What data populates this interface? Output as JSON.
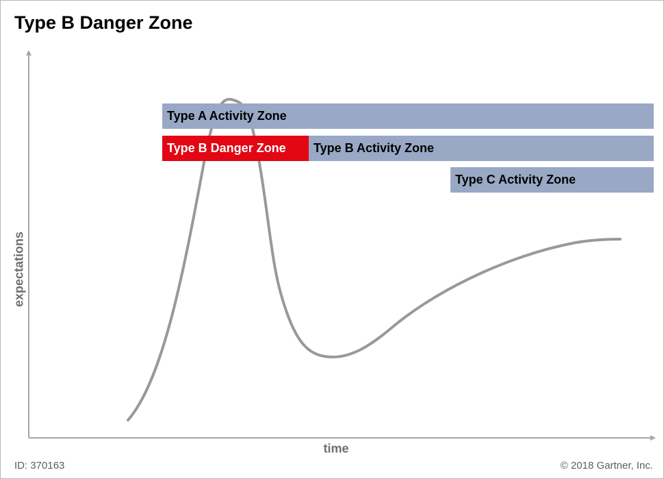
{
  "title": "Type B Danger Zone",
  "axes": {
    "y_label": "expectations",
    "x_label": "time"
  },
  "zones": {
    "type_a_activity": "Type A Activity Zone",
    "type_b_danger": "Type B Danger Zone",
    "type_b_activity": "Type B Activity Zone",
    "type_c_activity": "Type C Activity Zone"
  },
  "footer": {
    "id": "ID: 370163",
    "copyright": "© 2018 Gartner, Inc."
  },
  "colors": {
    "activity_zone": "#98a8c5",
    "danger_zone": "#e30613",
    "curve": "#999999",
    "axis": "#a6a6a6"
  }
}
